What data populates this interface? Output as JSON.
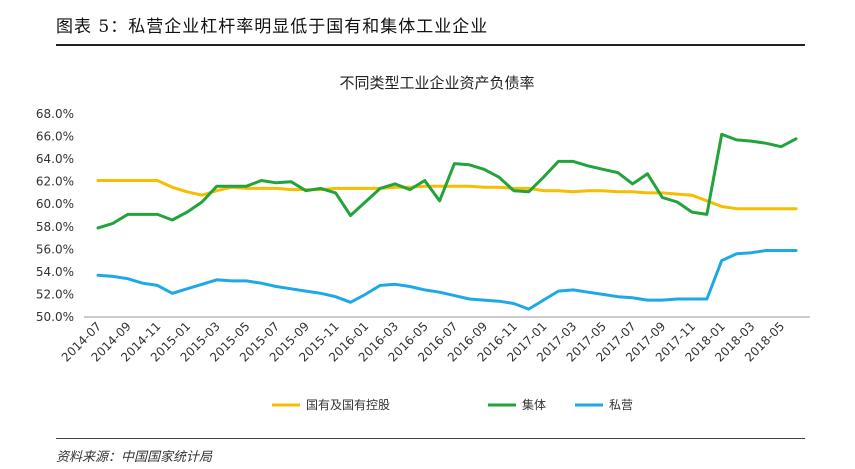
{
  "figure_title": "图表 5：私营企业杠杆率明显低于国有和集体工业企业",
  "source": "资料来源：中国国家统计局",
  "colors": {
    "state": "#F5BE00",
    "collective": "#22A33C",
    "private": "#1EA8E6"
  },
  "chart_data": {
    "type": "line",
    "title": "不同类型工业企业资产负债率",
    "xlabel": "",
    "ylabel": "",
    "ylim": [
      50,
      68
    ],
    "yticks": [
      50,
      52,
      54,
      56,
      58,
      60,
      62,
      64,
      66,
      68
    ],
    "ytick_labels": [
      "50.0%",
      "52.0%",
      "54.0%",
      "56.0%",
      "58.0%",
      "60.0%",
      "62.0%",
      "64.0%",
      "66.0%",
      "68.0%"
    ],
    "x": [
      "2014-07",
      "2014-08",
      "2014-09",
      "2014-10",
      "2014-11",
      "2014-12",
      "2015-01",
      "2015-02",
      "2015-03",
      "2015-04",
      "2015-05",
      "2015-06",
      "2015-07",
      "2015-08",
      "2015-09",
      "2015-10",
      "2015-11",
      "2015-12",
      "2016-01",
      "2016-02",
      "2016-03",
      "2016-04",
      "2016-05",
      "2016-06",
      "2016-07",
      "2016-08",
      "2016-09",
      "2016-10",
      "2016-11",
      "2016-12",
      "2017-01",
      "2017-02",
      "2017-03",
      "2017-04",
      "2017-05",
      "2017-06",
      "2017-07",
      "2017-08",
      "2017-09",
      "2017-10",
      "2017-11",
      "2017-12",
      "2018-01",
      "2018-02",
      "2018-03",
      "2018-04",
      "2018-05",
      "2018-06"
    ],
    "xtick_labels": [
      "2014-07",
      "2014-09",
      "2014-11",
      "2015-01",
      "2015-03",
      "2015-05",
      "2015-07",
      "2015-09",
      "2015-11",
      "2016-01",
      "2016-03",
      "2016-05",
      "2016-07",
      "2016-09",
      "2016-11",
      "2017-01",
      "2017-03",
      "2017-05",
      "2017-07",
      "2017-09",
      "2017-11",
      "2018-01",
      "2018-03",
      "2018-05"
    ],
    "legend_position": "bottom",
    "series": [
      {
        "name": "国有及国有控股",
        "color_key": "state",
        "values": [
          62.1,
          62.1,
          62.1,
          62.1,
          62.1,
          61.5,
          61.1,
          60.8,
          61.2,
          61.5,
          61.4,
          61.4,
          61.4,
          61.3,
          61.3,
          61.3,
          61.4,
          61.4,
          61.4,
          61.4,
          61.5,
          61.5,
          61.6,
          61.6,
          61.6,
          61.6,
          61.5,
          61.5,
          61.4,
          61.4,
          61.2,
          61.2,
          61.1,
          61.2,
          61.2,
          61.1,
          61.1,
          61.0,
          61.0,
          60.9,
          60.8,
          60.3,
          59.8,
          59.6,
          59.6,
          59.6,
          59.6,
          59.6
        ]
      },
      {
        "name": "集体",
        "color_key": "collective",
        "values": [
          57.9,
          58.3,
          59.1,
          59.1,
          59.1,
          58.6,
          59.3,
          60.2,
          61.6,
          61.6,
          61.6,
          62.1,
          61.9,
          62.0,
          61.2,
          61.4,
          61.0,
          59.0,
          60.2,
          61.4,
          61.8,
          61.3,
          62.1,
          60.3,
          63.6,
          63.5,
          63.1,
          62.4,
          61.2,
          61.1,
          62.4,
          63.8,
          63.8,
          63.4,
          63.1,
          62.8,
          61.8,
          62.7,
          60.6,
          60.2,
          59.3,
          59.1,
          66.2,
          65.7,
          65.6,
          65.4,
          65.1,
          65.8
        ]
      },
      {
        "name": "私营",
        "color_key": "private",
        "values": [
          53.7,
          53.6,
          53.4,
          53.0,
          52.8,
          52.1,
          52.5,
          52.9,
          53.3,
          53.2,
          53.2,
          53.0,
          52.7,
          52.5,
          52.3,
          52.1,
          51.8,
          51.3,
          52.0,
          52.8,
          52.9,
          52.7,
          52.4,
          52.2,
          51.9,
          51.6,
          51.5,
          51.4,
          51.2,
          50.7,
          51.5,
          52.3,
          52.4,
          52.2,
          52.0,
          51.8,
          51.7,
          51.5,
          51.5,
          51.6,
          51.6,
          51.6,
          55.0,
          55.6,
          55.7,
          55.9,
          55.9,
          55.9
        ]
      }
    ]
  }
}
